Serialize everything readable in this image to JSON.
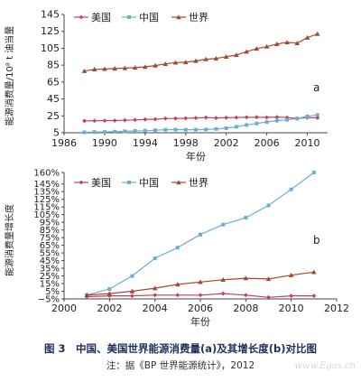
{
  "colors": {
    "usa": "#c83d5a",
    "china": "#6aaed6",
    "world": "#a04a32",
    "axis": "#444444"
  },
  "chart_data": [
    {
      "id": "a",
      "type": "line",
      "panel_label": "a",
      "ylabel": "能源消费量/10⁸ t 油当量",
      "xlabel": "年份",
      "xlim": [
        1986,
        2012
      ],
      "ylim": [
        5,
        145
      ],
      "xticks": [
        1986,
        1990,
        1994,
        1998,
        2002,
        2006,
        2010
      ],
      "yticks": [
        5,
        25,
        45,
        65,
        85,
        105,
        125,
        145
      ],
      "ytick_labels": [
        "5",
        "25",
        "45",
        "65",
        "85",
        "105",
        "125",
        "145"
      ],
      "grid": false,
      "legend_position": "top-left",
      "x": [
        1988,
        1989,
        1990,
        1991,
        1992,
        1993,
        1994,
        1995,
        1996,
        1997,
        1998,
        1999,
        2000,
        2001,
        2002,
        2003,
        2004,
        2005,
        2006,
        2007,
        2008,
        2009,
        2010,
        2011
      ],
      "series": [
        {
          "name": "美国",
          "key": "usa",
          "marker": "diamond",
          "values": [
            19,
            19.2,
            19.3,
            19.4,
            19.8,
            20.2,
            20.7,
            21.0,
            21.8,
            21.9,
            22.1,
            22.5,
            23.0,
            22.5,
            22.8,
            23.0,
            23.3,
            23.4,
            23.2,
            23.6,
            23.0,
            22.0,
            22.9,
            22.7
          ]
        },
        {
          "name": "中国",
          "key": "china",
          "marker": "square",
          "values": [
            5.6,
            5.8,
            6.0,
            6.3,
            6.7,
            7.1,
            7.4,
            8.0,
            8.6,
            8.7,
            8.6,
            8.6,
            8.8,
            9.5,
            10.4,
            12.1,
            14.2,
            16.0,
            17.7,
            19.3,
            20.3,
            21.8,
            24.3,
            26.0
          ]
        },
        {
          "name": "世界",
          "key": "world",
          "marker": "triangle",
          "values": [
            78,
            80,
            80.5,
            81,
            81.5,
            82,
            83,
            84.5,
            86.5,
            88,
            88.5,
            90,
            92,
            93,
            95,
            97,
            101,
            104.5,
            107,
            110,
            112,
            111,
            117.5,
            122
          ]
        }
      ]
    },
    {
      "id": "b",
      "type": "line",
      "panel_label": "b",
      "ylabel": "能源消费量增长度",
      "xlabel": "年份",
      "xlim": [
        2000,
        2012
      ],
      "ylim": [
        -5,
        160
      ],
      "xticks": [
        2000,
        2002,
        2004,
        2006,
        2008,
        2010,
        2012
      ],
      "yticks": [
        -5,
        5,
        15,
        25,
        35,
        45,
        55,
        65,
        75,
        85,
        95,
        105,
        115,
        125,
        135,
        145,
        160
      ],
      "ytick_labels": [
        "−5%",
        "5%",
        "15%",
        "25%",
        "35%",
        "45%",
        "55%",
        "65%",
        "75%",
        "85%",
        "95%",
        "105%",
        "115%",
        "125%",
        "135%",
        "145%",
        "160%"
      ],
      "grid": false,
      "legend_position": "top-left",
      "x": [
        2001,
        2002,
        2003,
        2004,
        2005,
        2006,
        2007,
        2008,
        2009,
        2010,
        2011
      ],
      "series": [
        {
          "name": "美国",
          "key": "usa",
          "marker": "diamond",
          "values": [
            -2,
            -1,
            -1,
            0,
            0,
            0,
            2,
            0,
            -3,
            -1,
            -1
          ]
        },
        {
          "name": "中国",
          "key": "china",
          "marker": "square",
          "values": [
            0,
            8,
            25,
            48,
            62,
            79,
            92,
            101,
            117,
            138,
            160
          ]
        },
        {
          "name": "世界",
          "key": "world",
          "marker": "triangle",
          "values": [
            0,
            2,
            5,
            9,
            14,
            17,
            20,
            22,
            21,
            26,
            30
          ]
        }
      ]
    }
  ],
  "caption": "图 3　中国、美国世界能源消费量(a)及其增长度(b)对比图",
  "note": "注：据《BP 世界能源统计》，2012",
  "watermark": "www.Egas.cn"
}
